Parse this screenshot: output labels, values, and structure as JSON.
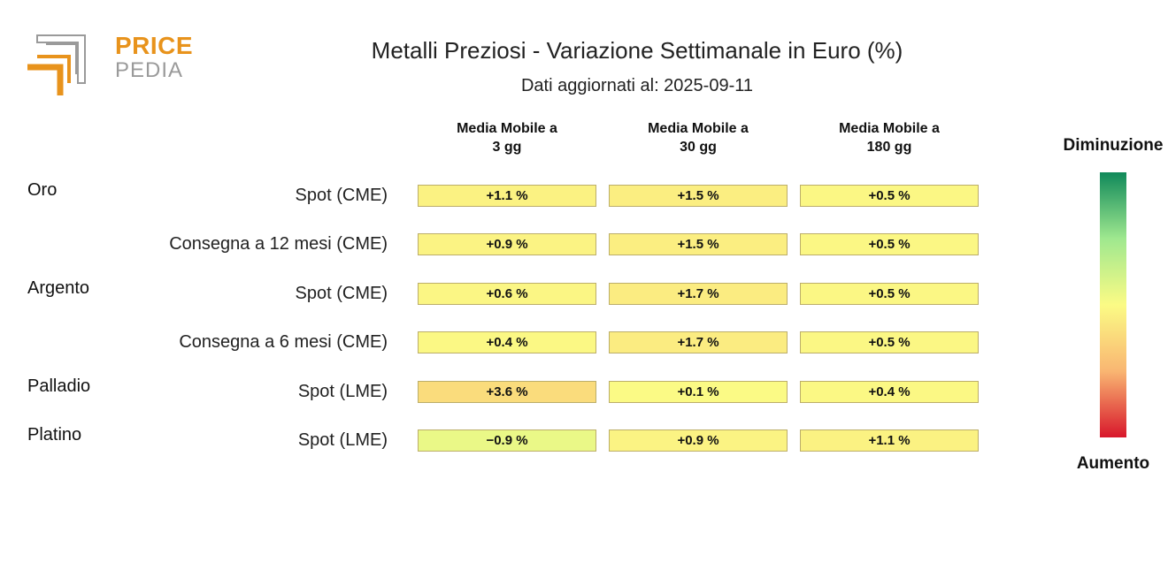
{
  "logo": {
    "line1": "PRICE",
    "line2": "PEDIA"
  },
  "header": {
    "title": "Metalli Preziosi - Variazione Settimanale in Euro (%)",
    "subtitle": "Dati aggiornati al: 2025-09-11"
  },
  "legend": {
    "top": "Diminuzione",
    "bottom": "Aumento",
    "colors": [
      "#10895a",
      "#9fe88f",
      "#fbfb85",
      "#f9b672",
      "#d8172b"
    ]
  },
  "chart_data": {
    "type": "heatmap",
    "title": "Metalli Preziosi - Variazione Settimanale in Euro (%)",
    "columns": [
      "Media Mobile a 3 gg",
      "Media Mobile a 30 gg",
      "Media Mobile a 180 gg"
    ],
    "column_lines": [
      [
        "Media Mobile a",
        "3 gg"
      ],
      [
        "Media Mobile a",
        "30 gg"
      ],
      [
        "Media Mobile a",
        "180 gg"
      ]
    ],
    "rows": [
      {
        "group": "Oro",
        "label": "Spot (CME)",
        "values": [
          1.1,
          1.5,
          0.5
        ],
        "display": [
          "+1.1 %",
          "+1.5 %",
          "+0.5 %"
        ]
      },
      {
        "group": "",
        "label": "Consegna a 12 mesi (CME)",
        "values": [
          0.9,
          1.5,
          0.5
        ],
        "display": [
          "+0.9 %",
          "+1.5 %",
          "+0.5 %"
        ]
      },
      {
        "group": "Argento",
        "label": "Spot (CME)",
        "values": [
          0.6,
          1.7,
          0.5
        ],
        "display": [
          "+0.6 %",
          "+1.7 %",
          "+0.5 %"
        ]
      },
      {
        "group": "",
        "label": "Consegna a 6 mesi (CME)",
        "values": [
          0.4,
          1.7,
          0.5
        ],
        "display": [
          "+0.4 %",
          "+1.7 %",
          "+0.5 %"
        ]
      },
      {
        "group": "Palladio",
        "label": "Spot (LME)",
        "values": [
          3.6,
          0.1,
          0.4
        ],
        "display": [
          "+3.6 %",
          "+0.1 %",
          "+0.4 %"
        ]
      },
      {
        "group": "Platino",
        "label": "Spot (LME)",
        "values": [
          -0.9,
          0.9,
          1.1
        ],
        "display": [
          "−0.9 %",
          "+0.9 %",
          "+1.1 %"
        ]
      }
    ],
    "color_range": [
      -10,
      10
    ],
    "legend_position": "right"
  }
}
